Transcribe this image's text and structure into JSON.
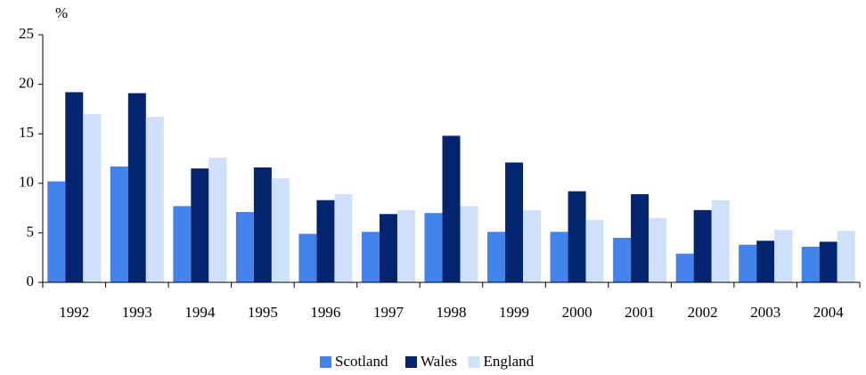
{
  "chart_data": {
    "type": "bar",
    "y_label": "%",
    "categories": [
      "1992",
      "1993",
      "1994",
      "1995",
      "1996",
      "1997",
      "1998",
      "1999",
      "2000",
      "2001",
      "2002",
      "2003",
      "2004"
    ],
    "series": [
      {
        "name": "Scotland",
        "color": "#4383ee",
        "values": [
          10.2,
          11.7,
          7.7,
          7.1,
          4.9,
          5.1,
          7.0,
          5.1,
          5.1,
          4.5,
          2.9,
          3.8,
          3.6
        ]
      },
      {
        "name": "Wales",
        "color": "#03246e",
        "values": [
          19.2,
          19.1,
          11.5,
          11.6,
          8.3,
          6.9,
          14.8,
          12.1,
          9.2,
          8.9,
          7.3,
          4.2,
          4.1
        ]
      },
      {
        "name": "England",
        "color": "#cfe0fb",
        "values": [
          17.0,
          16.7,
          12.6,
          10.5,
          8.9,
          7.3,
          7.7,
          7.3,
          6.3,
          6.5,
          8.3,
          5.3,
          5.2
        ]
      }
    ],
    "ylim": [
      0,
      25
    ],
    "yticks": [
      0,
      5,
      10,
      15,
      20,
      25
    ],
    "legend": "bottom"
  }
}
